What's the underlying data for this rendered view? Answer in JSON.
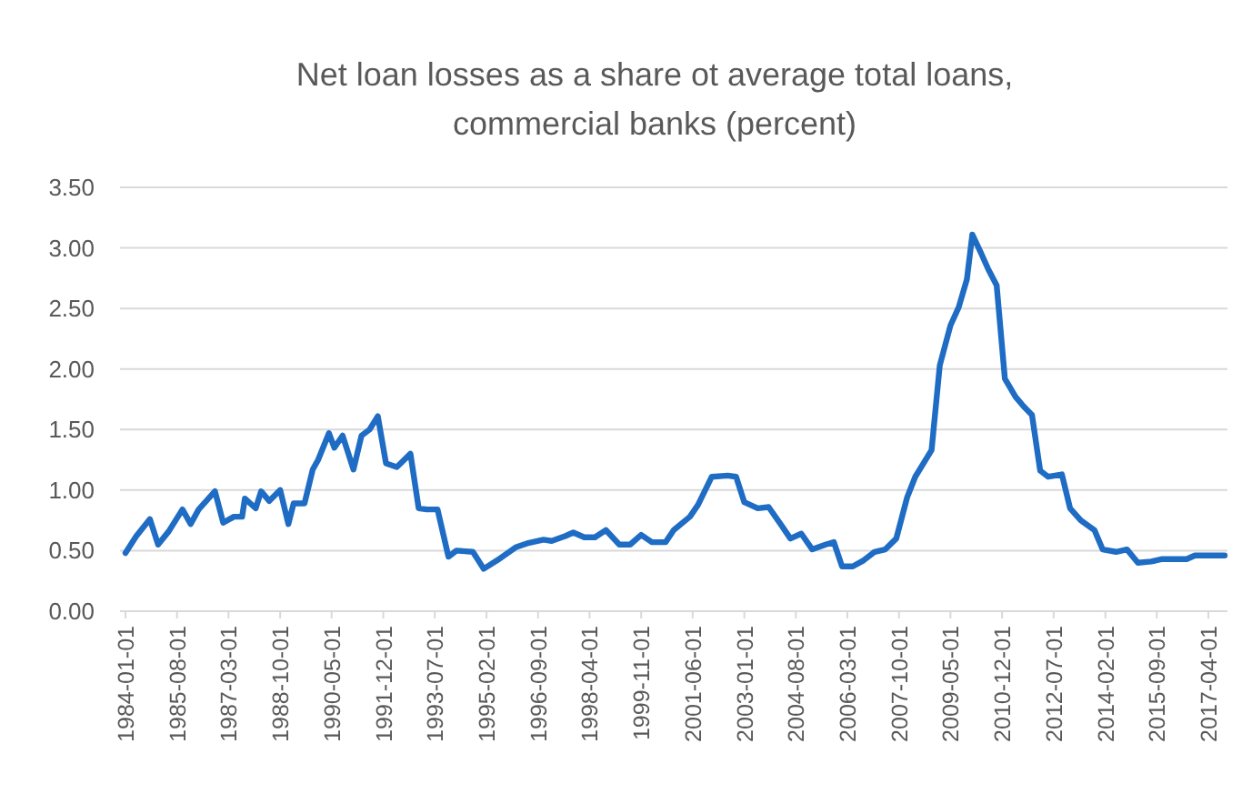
{
  "chart_data": {
    "type": "line",
    "title": "Net loan losses as a share ot average total loans,\ncommercial banks (percent)",
    "x": [
      "1984-01",
      "1984-05",
      "1984-10",
      "1985-01",
      "1985-05",
      "1985-10",
      "1986-01",
      "1986-04",
      "1986-10",
      "1987-01",
      "1987-05",
      "1987-08",
      "1987-09",
      "1988-01",
      "1988-03",
      "1988-06",
      "1988-10",
      "1989-01",
      "1989-03",
      "1989-07",
      "1989-10",
      "1989-12",
      "1990-04",
      "1990-06",
      "1990-09",
      "1991-01",
      "1991-04",
      "1991-07",
      "1991-10",
      "1992-01",
      "1992-05",
      "1992-10",
      "1993-01",
      "1993-04",
      "1993-08",
      "1993-12",
      "1994-03",
      "1994-09",
      "1995-01",
      "1995-06",
      "1996-01",
      "1996-05",
      "1996-11",
      "1997-02",
      "1997-07",
      "1997-10",
      "1998-02",
      "1998-06",
      "1998-10",
      "1999-03",
      "1999-07",
      "1999-11",
      "2000-03",
      "2000-08",
      "2000-11",
      "2001-05",
      "2001-08",
      "2002-01",
      "2002-07",
      "2002-10",
      "2003-01",
      "2003-06",
      "2003-10",
      "2004-03",
      "2004-06",
      "2004-10",
      "2005-02",
      "2005-07",
      "2005-10",
      "2006-01",
      "2006-05",
      "2006-09",
      "2007-01",
      "2007-05",
      "2007-09",
      "2008-01",
      "2008-04",
      "2008-10",
      "2009-01",
      "2009-05",
      "2009-08",
      "2009-11",
      "2010-01",
      "2010-04",
      "2010-07",
      "2010-10",
      "2011-01",
      "2011-05",
      "2011-08",
      "2011-11",
      "2012-02",
      "2012-05",
      "2012-10",
      "2013-01",
      "2013-05",
      "2013-10",
      "2014-01",
      "2014-06",
      "2014-10",
      "2015-02",
      "2015-07",
      "2015-11",
      "2016-08",
      "2016-11",
      "2017-10"
    ],
    "series": [
      {
        "color": "#1f6cc4",
        "values": [
          0.48,
          0.62,
          0.76,
          0.55,
          0.66,
          0.84,
          0.72,
          0.84,
          0.99,
          0.73,
          0.78,
          0.78,
          0.93,
          0.85,
          0.99,
          0.91,
          1.0,
          0.72,
          0.89,
          0.89,
          1.17,
          1.25,
          1.47,
          1.35,
          1.45,
          1.17,
          1.45,
          1.5,
          1.61,
          1.22,
          1.19,
          1.3,
          0.85,
          0.84,
          0.84,
          0.45,
          0.5,
          0.49,
          0.35,
          0.42,
          0.53,
          0.56,
          0.59,
          0.58,
          0.62,
          0.65,
          0.61,
          0.61,
          0.67,
          0.55,
          0.55,
          0.63,
          0.57,
          0.57,
          0.67,
          0.78,
          0.88,
          1.11,
          1.12,
          1.11,
          0.9,
          0.85,
          0.86,
          0.7,
          0.6,
          0.64,
          0.51,
          0.55,
          0.57,
          0.37,
          0.37,
          0.42,
          0.49,
          0.51,
          0.6,
          0.94,
          1.11,
          1.33,
          2.03,
          2.36,
          2.51,
          2.74,
          3.11,
          2.97,
          2.82,
          2.69,
          1.92,
          1.77,
          1.69,
          1.62,
          1.16,
          1.11,
          1.13,
          0.85,
          0.75,
          0.67,
          0.51,
          0.49,
          0.51,
          0.4,
          0.41,
          0.43,
          0.43,
          0.46,
          0.46
        ]
      }
    ],
    "xlim": [
      "1983-11",
      "2017-11"
    ],
    "xticks": [
      "1984-01-01",
      "1985-08-01",
      "1987-03-01",
      "1988-10-01",
      "1990-05-01",
      "1991-12-01",
      "1993-07-01",
      "1995-02-01",
      "1996-09-01",
      "1998-04-01",
      "1999-11-01",
      "2001-06-01",
      "2003-01-01",
      "2004-08-01",
      "2006-03-01",
      "2007-10-01",
      "2009-05-01",
      "2010-12-01",
      "2012-07-01",
      "2014-02-01",
      "2015-09-01",
      "2017-04-01"
    ],
    "ylim": [
      0,
      3.5
    ],
    "yticks": [
      {
        "value": 0,
        "label": "0.00"
      },
      {
        "value": 0.5,
        "label": "0.50"
      },
      {
        "value": 1,
        "label": "1.00"
      },
      {
        "value": 1.5,
        "label": "1.50"
      },
      {
        "value": 2,
        "label": "2.00"
      },
      {
        "value": 2.5,
        "label": "2.50"
      },
      {
        "value": 3,
        "label": "3.00"
      },
      {
        "value": 3.5,
        "label": "3.50"
      }
    ],
    "grid": "y",
    "line_style": "solid",
    "marker": "none"
  }
}
